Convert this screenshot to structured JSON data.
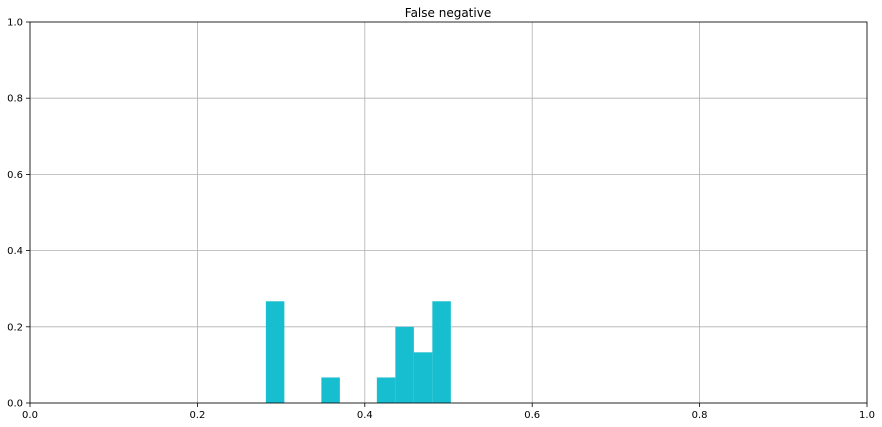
{
  "chart_data": {
    "type": "bar",
    "title": "False negative",
    "xlabel": "",
    "ylabel": "",
    "xlim": [
      0,
      1
    ],
    "ylim": [
      0,
      1
    ],
    "grid": true,
    "bar_color": "#17becf",
    "x_ticks": [
      "0.0",
      "0.2",
      "0.4",
      "0.6",
      "0.8",
      "1.0"
    ],
    "y_ticks": [
      "0.0",
      "0.2",
      "0.4",
      "0.6",
      "0.8",
      "1.0"
    ],
    "bins": [
      {
        "x0": 0.2818,
        "x1": 0.3039,
        "value": 0.267
      },
      {
        "x0": 0.3481,
        "x1": 0.3702,
        "value": 0.067
      },
      {
        "x0": 0.4144,
        "x1": 0.4365,
        "value": 0.067
      },
      {
        "x0": 0.4365,
        "x1": 0.4586,
        "value": 0.2
      },
      {
        "x0": 0.4586,
        "x1": 0.4807,
        "value": 0.133
      },
      {
        "x0": 0.4807,
        "x1": 0.5028,
        "value": 0.267
      }
    ]
  }
}
